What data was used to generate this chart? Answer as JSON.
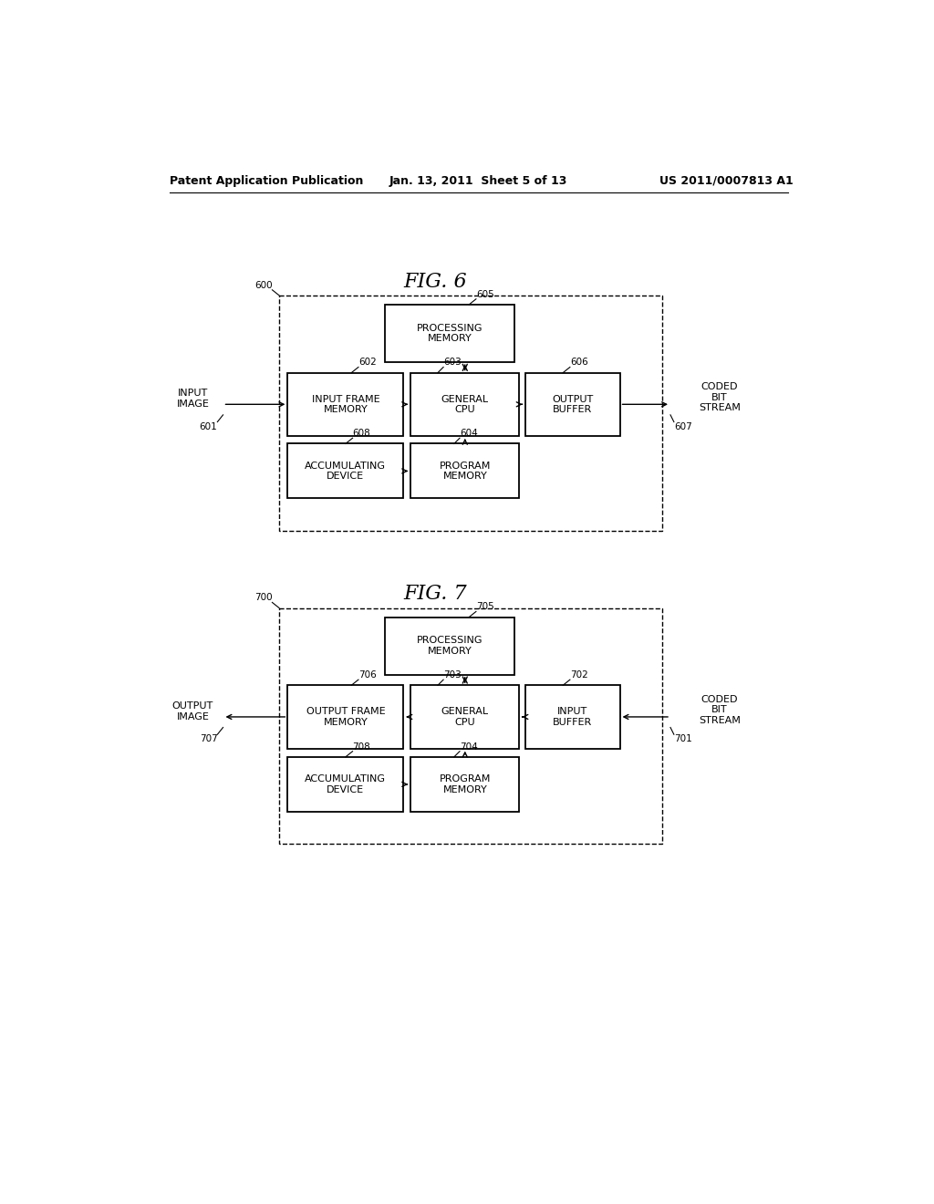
{
  "background_color": "#ffffff",
  "header_left": "Patent Application Publication",
  "header_center": "Jan. 13, 2011  Sheet 5 of 13",
  "header_right": "US 2011/0007813 A1",
  "fig6_title": "FIG. 6",
  "fig7_title": "FIG. 7",
  "fig6": {
    "outer_label": "600",
    "box_proc_mem": {
      "label": "PROCESSING\nMEMORY",
      "ref": "605"
    },
    "box_input_frame": {
      "label": "INPUT FRAME\nMEMORY",
      "ref": "602"
    },
    "box_general_cpu": {
      "label": "GENERAL\nCPU",
      "ref": "603"
    },
    "box_output_buf": {
      "label": "OUTPUT\nBUFFER",
      "ref": "606"
    },
    "box_accum": {
      "label": "ACCUMULATING\nDEVICE",
      "ref": "608"
    },
    "box_prog_mem": {
      "label": "PROGRAM\nMEMORY",
      "ref": "604"
    },
    "in_label": "INPUT\nIMAGE",
    "in_ref": "601",
    "out_label": "CODED\nBIT\nSTREAM",
    "out_ref": "607"
  },
  "fig7": {
    "outer_label": "700",
    "box_proc_mem": {
      "label": "PROCESSING\nMEMORY",
      "ref": "705"
    },
    "box_out_frame": {
      "label": "OUTPUT FRAME\nMEMORY",
      "ref": "706"
    },
    "box_general_cpu": {
      "label": "GENERAL\nCPU",
      "ref": "703"
    },
    "box_input_buf": {
      "label": "INPUT\nBUFFER",
      "ref": "702"
    },
    "box_accum": {
      "label": "ACCUMULATING\nDEVICE",
      "ref": "708"
    },
    "box_prog_mem": {
      "label": "PROGRAM\nMEMORY",
      "ref": "704"
    },
    "out_label": "OUTPUT\nIMAGE",
    "out_ref": "707",
    "in_label": "CODED\nBIT\nSTREAM",
    "in_ref": "701"
  }
}
